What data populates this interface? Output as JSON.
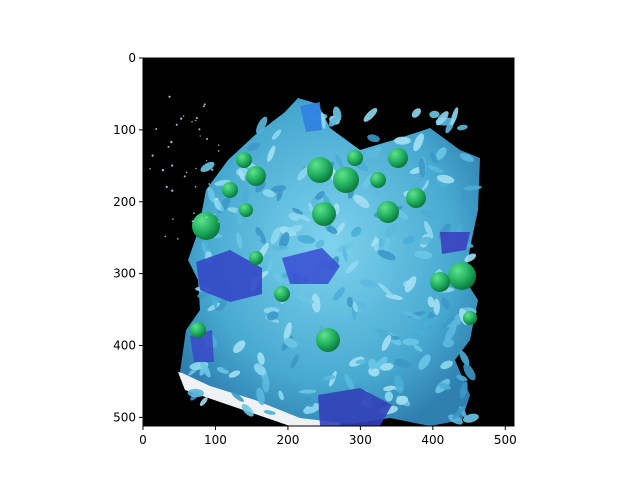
{
  "chart_data": {
    "type": "heatmap",
    "title": "",
    "xlabel": "",
    "ylabel": "",
    "xlim": [
      0,
      512
    ],
    "ylim": [
      512,
      0
    ],
    "x_ticks": [
      0,
      100,
      200,
      300,
      400,
      500
    ],
    "y_ticks": [
      0,
      100,
      200,
      300,
      400,
      500
    ],
    "x_tick_labels": [
      "0",
      "100",
      "200",
      "300",
      "400",
      "500"
    ],
    "y_tick_labels": [
      "0",
      "100",
      "200",
      "300",
      "400",
      "500"
    ],
    "grid": false,
    "image_content": "close-up of light blue rice grains mixed with green round beads and dark blue pieces on a white base, on a black background",
    "colors": {
      "background": "#000000",
      "rice": "#4fb2d6",
      "beads": "#1faf63",
      "chunks": "#3a4fd0",
      "base": "#f2f4f6"
    }
  }
}
